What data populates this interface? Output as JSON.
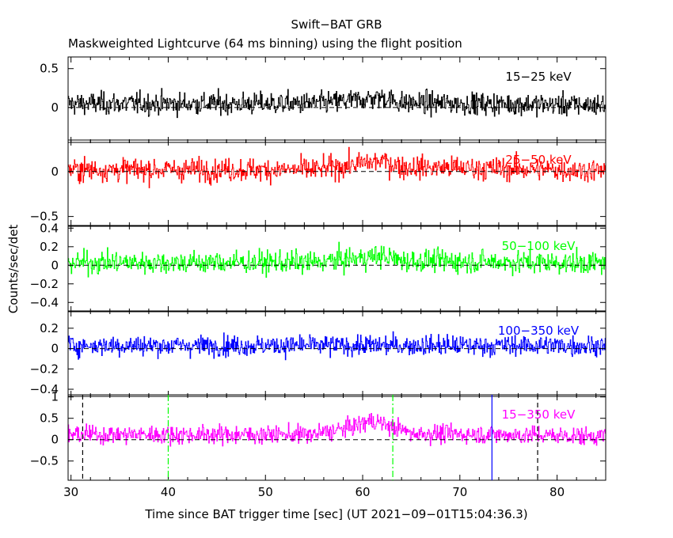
{
  "chart_data": {
    "type": "line",
    "title": "Swift−BAT GRB",
    "subtitle": "Maskweighted Lightcurve (64 ms binning) using the flight position",
    "xlabel": "Time since BAT trigger time [sec] (UT 2021−09−01T15:04:36.3)",
    "ylabel": "Counts/sec/det",
    "xlim": [
      29.7,
      85
    ],
    "x_ticks": [
      30,
      40,
      50,
      60,
      70,
      80
    ],
    "x_tick_labels": [
      "30",
      "40",
      "50",
      "60",
      "70",
      "80"
    ],
    "bin_width_sec": 0.064,
    "panels": [
      {
        "band": "15−25 keV",
        "color": "#000000",
        "ylim": [
          -0.45,
          0.65
        ],
        "y_ticks": [
          0,
          0.5
        ],
        "y_tick_labels": [
          "0",
          "0.5"
        ],
        "noise_sigma": 0.1,
        "profile_points": [
          [
            29.7,
            0.05
          ],
          [
            55,
            0.05
          ],
          [
            58,
            0.08
          ],
          [
            62,
            0.13
          ],
          [
            64,
            0.06
          ],
          [
            85,
            0.03
          ]
        ]
      },
      {
        "band": "25−50 keV",
        "color": "#ff0000",
        "ylim": [
          -0.6,
          0.35
        ],
        "y_ticks": [
          -0.5,
          0
        ],
        "y_tick_labels": [
          "−0.5",
          "0"
        ],
        "noise_sigma": 0.09,
        "profile_points": [
          [
            29.7,
            0.02
          ],
          [
            55,
            0.02
          ],
          [
            58,
            0.06
          ],
          [
            62,
            0.12
          ],
          [
            64,
            0.05
          ],
          [
            85,
            0.01
          ]
        ]
      },
      {
        "band": "50−100 keV",
        "color": "#00ff00",
        "ylim": [
          -0.5,
          0.42
        ],
        "y_ticks": [
          -0.4,
          -0.2,
          0,
          0.2,
          0.4
        ],
        "y_tick_labels": [
          "−0.4",
          "−0.2",
          "0",
          "0.2",
          "0.4"
        ],
        "noise_sigma": 0.085,
        "profile_points": [
          [
            29.7,
            0.03
          ],
          [
            55,
            0.03
          ],
          [
            58,
            0.06
          ],
          [
            62,
            0.1
          ],
          [
            64,
            0.05
          ],
          [
            85,
            0.02
          ]
        ]
      },
      {
        "band": "100−350 keV",
        "color": "#0000ff",
        "ylim": [
          -0.47,
          0.37
        ],
        "y_ticks": [
          -0.4,
          -0.2,
          0,
          0.2
        ],
        "y_tick_labels": [
          "−0.4",
          "−0.2",
          "0",
          "0.2"
        ],
        "noise_sigma": 0.07,
        "profile_points": [
          [
            29.7,
            0.03
          ],
          [
            85,
            0.03
          ]
        ]
      },
      {
        "band": "15−350 keV",
        "color": "#ff00ff",
        "ylim": [
          -0.95,
          1.05
        ],
        "y_ticks": [
          -0.5,
          0,
          0.5,
          1
        ],
        "y_tick_labels": [
          "−0.5",
          "0",
          "0.5",
          "1"
        ],
        "noise_sigma": 0.15,
        "profile_points": [
          [
            29.7,
            0.12
          ],
          [
            55,
            0.12
          ],
          [
            58,
            0.25
          ],
          [
            61,
            0.45
          ],
          [
            63,
            0.3
          ],
          [
            65,
            0.15
          ],
          [
            85,
            0.08
          ]
        ]
      }
    ],
    "markers": [
      {
        "x": 31.2,
        "color": "#000000",
        "style": "dashed"
      },
      {
        "x": 40.0,
        "color": "#00ff00",
        "style": "dash-dot"
      },
      {
        "x": 63.1,
        "color": "#00ff00",
        "style": "dash-dot"
      },
      {
        "x": 73.3,
        "color": "#0000ff",
        "style": "solid"
      },
      {
        "x": 78.0,
        "color": "#000000",
        "style": "dashed"
      }
    ],
    "grid": false,
    "zero_line": "dashed"
  }
}
